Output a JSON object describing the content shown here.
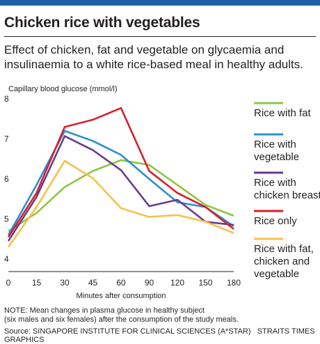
{
  "header": {
    "title": "Chicken rice with vegetables",
    "subtitle": "Effect of chicken, fat and vegetable on glycaemia and insulinaemia to a white rice-based meal in healthy adults.",
    "accent_color": "#1f5fa6"
  },
  "footer": {
    "note_line1": "NOTE: Mean changes in plasma glucose in healthy subject",
    "note_line2": "(six males and six females) after the consumption of the study meals.",
    "source": "Source: SINGAPORE INSTITUTE FOR CLINICAL SCIENCES (A*STAR)",
    "credit": "STRAITS TIMES GRAPHICS"
  },
  "chart_data": {
    "type": "line",
    "ylabel": "Capillary blood glucose (mmol/l)",
    "xlabel": "Minutes after consumption",
    "categories": [
      "0",
      "15",
      "30",
      "45",
      "60",
      "90",
      "120",
      "150",
      "180"
    ],
    "ylim": [
      4,
      8
    ],
    "yticks": [
      "4",
      "5",
      "6",
      "7",
      "8"
    ],
    "grid": false,
    "legend_position": "right",
    "series": [
      {
        "name": "Rice with fat",
        "color": "#8dc63f",
        "values": [
          4.7,
          5.15,
          5.8,
          6.2,
          6.47,
          6.35,
          5.85,
          5.35,
          5.08
        ]
      },
      {
        "name": "Rice with vegetable",
        "color": "#2b8fd0",
        "values": [
          4.6,
          5.85,
          7.2,
          6.95,
          6.6,
          6.0,
          5.42,
          5.3,
          4.82
        ]
      },
      {
        "name": "Rice with chicken breast",
        "color": "#6a3a8d",
        "values": [
          4.45,
          5.55,
          7.07,
          6.72,
          6.22,
          5.32,
          5.48,
          4.93,
          4.85
        ]
      },
      {
        "name": "Rice only",
        "color": "#d71f2b",
        "values": [
          4.55,
          5.65,
          7.3,
          7.48,
          7.77,
          6.2,
          5.65,
          5.3,
          4.75
        ]
      },
      {
        "name": "Rice with fat, chicken and vegetable",
        "color": "#f7c04a",
        "values": [
          4.3,
          5.3,
          6.45,
          6.02,
          5.27,
          5.05,
          5.1,
          4.93,
          4.65
        ]
      }
    ]
  },
  "legend_labels": [
    [
      "Rice with fat"
    ],
    [
      "Rice with",
      "vegetable"
    ],
    [
      "Rice with",
      "chicken breast"
    ],
    [
      "Rice only"
    ],
    [
      "Rice with fat,",
      "chicken and",
      "vegetable"
    ]
  ]
}
